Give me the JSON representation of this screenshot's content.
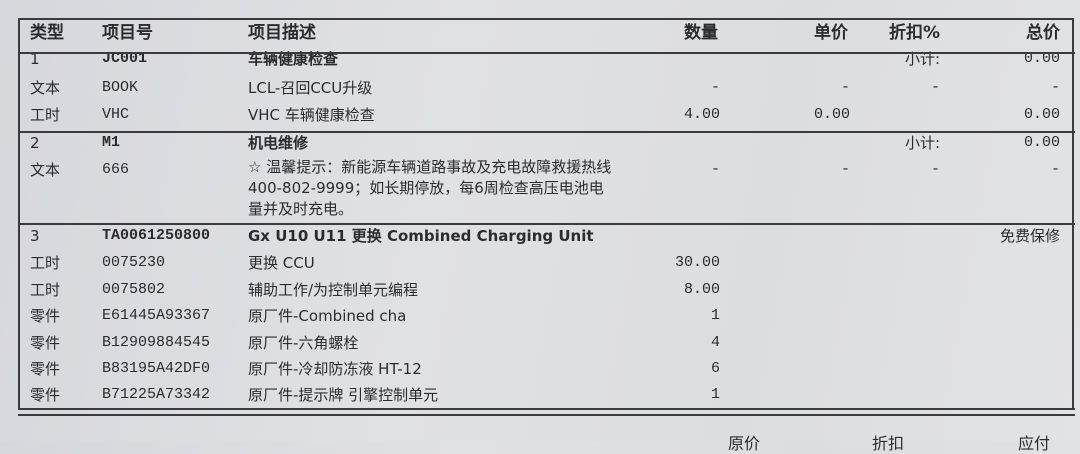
{
  "header": {
    "type": "类型",
    "code": "项目号",
    "desc": "项目描述",
    "qty": "数量",
    "price": "单价",
    "discount": "折扣%",
    "total": "总价"
  },
  "groups": [
    {
      "rows": [
        {
          "type": "1",
          "code": "JC001",
          "desc": "车辆健康检查",
          "qty": "",
          "price": "",
          "discount": "小计:",
          "total": "0.00",
          "head": true
        },
        {
          "type": "文本",
          "code": "BOOK",
          "desc": "LCL-召回CCU升级",
          "qty": "-",
          "price": "-",
          "discount": "-",
          "total": "-"
        },
        {
          "type": "工时",
          "code": "VHC",
          "desc": "VHC 车辆健康检查",
          "qty": "4.00",
          "price": "0.00",
          "discount": "",
          "total": "0.00"
        }
      ]
    },
    {
      "rows": [
        {
          "type": "2",
          "code": "M1",
          "desc": "机电维修",
          "qty": "",
          "price": "",
          "discount": "小计:",
          "total": "0.00",
          "head": true
        },
        {
          "type": "文本",
          "code": "666",
          "desc": "☆ 温馨提示：新能源车辆道路事故及充电故障救援热线400-802-9999；如长期停放，每6周检查高压电池电量并及时充电。",
          "qty": "-",
          "price": "-",
          "discount": "-",
          "total": "-",
          "multi": true
        }
      ]
    },
    {
      "rows": [
        {
          "type": "3",
          "code": "TA0061250800",
          "desc": "Gx U10 U11 更换 Combined Charging Unit",
          "qty": "",
          "price": "",
          "discount": "",
          "total": "免费保修",
          "head": true
        },
        {
          "type": "工时",
          "code": "0075230",
          "desc": "更换 CCU",
          "qty": "30.00",
          "price": "",
          "discount": "",
          "total": ""
        },
        {
          "type": "工时",
          "code": "0075802",
          "desc": "辅助工作/为控制单元编程",
          "qty": "8.00",
          "price": "",
          "discount": "",
          "total": ""
        },
        {
          "type": "零件",
          "code": "E61445A93367",
          "desc": "原厂件-Combined cha",
          "qty": "1",
          "price": "",
          "discount": "",
          "total": ""
        },
        {
          "type": "零件",
          "code": "B12909884545",
          "desc": "原厂件-六角螺栓",
          "qty": "4",
          "price": "",
          "discount": "",
          "total": ""
        },
        {
          "type": "零件",
          "code": "B83195A42DF0",
          "desc": "原厂件-冷却防冻液 HT-12",
          "qty": "6",
          "price": "",
          "discount": "",
          "total": ""
        },
        {
          "type": "零件",
          "code": "B71225A73342",
          "desc": "原厂件-提示牌 引擎控制单元",
          "qty": "1",
          "price": "",
          "discount": "",
          "total": ""
        }
      ]
    }
  ],
  "footer": {
    "original_price": "原价",
    "discount": "折扣",
    "payable": "应付"
  }
}
